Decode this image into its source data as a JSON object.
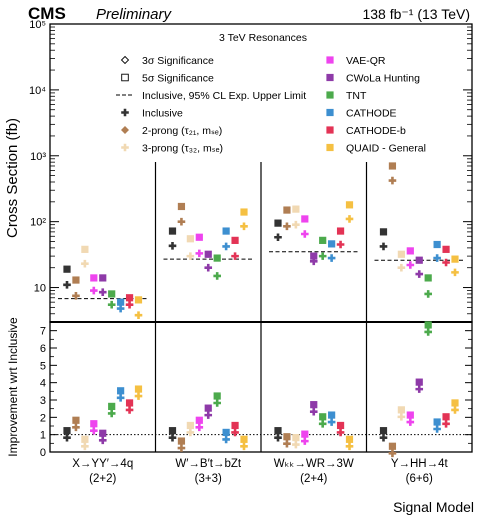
{
  "header": {
    "experiment": "CMS",
    "status": "Preliminary",
    "lumi": "138 fb⁻¹ (13 TeV)"
  },
  "chart_data": {
    "type": "scatter",
    "title": "3 TeV Resonances",
    "xlabel": "Signal Model",
    "categories": [
      {
        "line1": "X→YY′→4q",
        "line2": "(2+2)"
      },
      {
        "line1": "W′→B′t→bZt",
        "line2": "(3+3)"
      },
      {
        "line1": "Wₖₖ→WR→3W",
        "line2": "(2+4)"
      },
      {
        "line1": "Y→HH→4t",
        "line2": "(6+6)"
      }
    ],
    "top_panel": {
      "ylabel": "Cross Section (fb)",
      "yscale": "log",
      "ylim": [
        3,
        100000
      ],
      "yticks": [
        {
          "value": 10,
          "label": "10"
        },
        {
          "value": 100,
          "label": "10²"
        },
        {
          "value": 1000,
          "label": "10³"
        },
        {
          "value": 10000,
          "label": "10⁴"
        },
        {
          "value": 100000,
          "label": "10⁵"
        }
      ],
      "expected_limit": [
        6.8,
        27,
        35,
        26
      ]
    },
    "bottom_panel": {
      "ylabel": "Improvement wrt Inclusive",
      "ylim": [
        0,
        7.5
      ],
      "yticks": [
        0,
        1,
        2,
        3,
        4,
        5,
        6,
        7
      ],
      "reference_line": 1
    },
    "legend": {
      "left": [
        {
          "label": "3σ Significance",
          "kind": "open-diamond"
        },
        {
          "label": "5σ Significance",
          "kind": "open-square"
        },
        {
          "label": "Inclusive, 95% CL Exp. Upper Limit",
          "kind": "dashed-line"
        },
        {
          "label": "Inclusive",
          "kind": "method",
          "method": 0
        },
        {
          "label": "2-prong (τ₂₁, mₛₑ)",
          "kind": "method",
          "method": 1
        },
        {
          "label": "3-prong (τ₃₂, mₛₑ)",
          "kind": "method",
          "method": 2
        }
      ],
      "right": [
        {
          "label": "VAE-QR",
          "kind": "method",
          "method": 3
        },
        {
          "label": "CWoLa Hunting",
          "kind": "method",
          "method": 4
        },
        {
          "label": "TNT",
          "kind": "method",
          "method": 5
        },
        {
          "label": "CATHODE",
          "kind": "method",
          "method": 6
        },
        {
          "label": "CATHODE-b",
          "kind": "method",
          "method": 7
        },
        {
          "label": "QUAID - General",
          "kind": "method",
          "method": 8
        }
      ]
    },
    "methods": [
      {
        "name": "Inclusive",
        "color": "#333333"
      },
      {
        "name": "2-prong",
        "color": "#b07e53"
      },
      {
        "name": "3-prong",
        "color": "#f1d9b3"
      },
      {
        "name": "VAE-QR",
        "color": "#ee44ee"
      },
      {
        "name": "CWoLa Hunting",
        "color": "#8e3aa8"
      },
      {
        "name": "TNT",
        "color": "#4caa4c"
      },
      {
        "name": "CATHODE",
        "color": "#3d8fd0"
      },
      {
        "name": "CATHODE-b",
        "color": "#e33355"
      },
      {
        "name": "QUAID - General",
        "color": "#f5c042"
      }
    ],
    "series_sigma5": [
      [
        19,
        13,
        38,
        14,
        14,
        8,
        6,
        7,
        6.5
      ],
      [
        72,
        170,
        55,
        58,
        32,
        28,
        72,
        52,
        140
      ],
      [
        95,
        150,
        155,
        110,
        30,
        52,
        46,
        72,
        180
      ],
      [
        70,
        700,
        32,
        36,
        26,
        14,
        45,
        38,
        27
      ]
    ],
    "series_sigma3": [
      [
        11,
        7.5,
        23,
        9,
        8.5,
        5.5,
        4.8,
        5.5,
        3.8
      ],
      [
        43,
        100,
        30,
        33,
        20,
        15,
        42,
        30,
        85
      ],
      [
        58,
        85,
        90,
        65,
        25,
        30,
        28,
        45,
        110
      ],
      [
        42,
        420,
        20,
        22,
        16,
        8,
        28,
        24,
        17
      ]
    ],
    "improvement": [
      [
        1.0,
        1.6,
        0.5,
        1.4,
        0.85,
        2.4,
        3.3,
        2.6,
        3.4
      ],
      [
        1.0,
        0.4,
        1.3,
        1.6,
        2.3,
        3.0,
        0.9,
        1.3,
        0.5
      ],
      [
        1.0,
        0.65,
        0.6,
        0.8,
        2.5,
        1.8,
        1.9,
        1.3,
        0.5
      ],
      [
        1.0,
        0.1,
        2.2,
        1.9,
        3.8,
        7.1,
        1.5,
        1.8,
        2.6
      ]
    ]
  }
}
